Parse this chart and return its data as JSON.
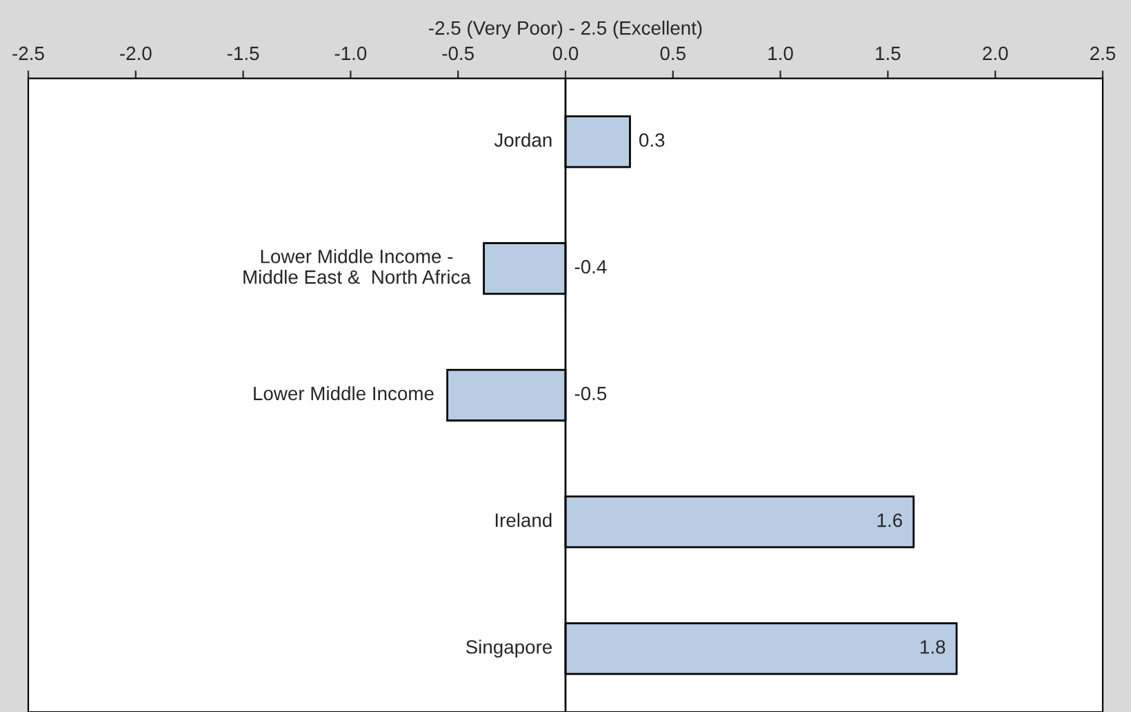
{
  "chart_data": {
    "type": "bar",
    "orientation": "horizontal",
    "xlabel": "-2.5 (Very Poor) - 2.5 (Excellent)",
    "categories": [
      "Jordan",
      "Lower Middle Income -\nMiddle East &  North Africa",
      "Lower Middle Income",
      "Ireland",
      "Singapore"
    ],
    "values": [
      0.3,
      -0.38,
      -0.55,
      1.62,
      1.82
    ],
    "value_labels": [
      "0.3",
      "-0.4",
      "-0.5",
      "1.6",
      "1.8"
    ],
    "color": "#b8cce4",
    "xlim": [
      -2.5,
      2.5
    ],
    "xticks": [
      -2.5,
      {
        "value": -2.0,
        "label": "-2.0"
      },
      {
        "value": -1.5,
        "label": "-1.5"
      },
      {
        "value": -1.0,
        "label": "-1.0"
      },
      {
        "value": -0.5,
        "label": "-0.5"
      },
      {
        "value": 0.0,
        "label": "0.0"
      },
      0.5,
      {
        "value": 1.0,
        "label": "1.0"
      },
      1.5,
      {
        "value": 2.0,
        "label": "2.0"
      },
      2.5
    ],
    "grid": false,
    "legend": false
  }
}
